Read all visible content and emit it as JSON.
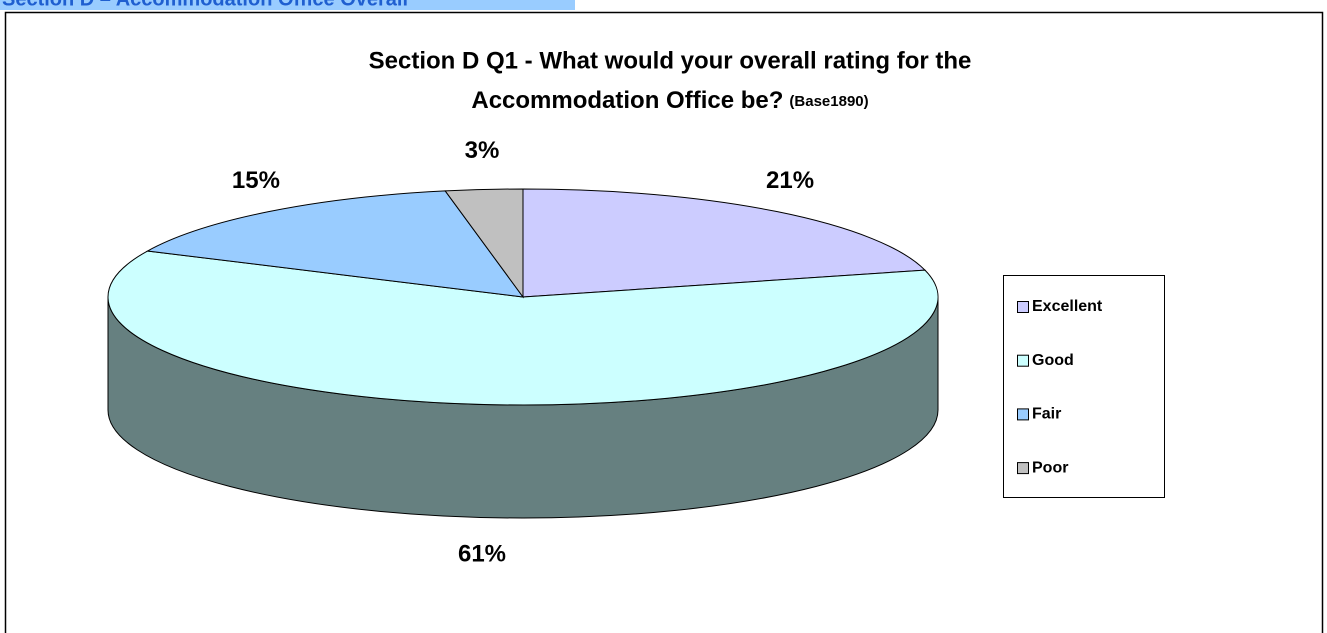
{
  "section_header": "Section D – Accommodation Office Overall",
  "chart_data": {
    "type": "pie",
    "title": [
      "Section D Q1 - What would your overall rating for the",
      "Accommodation Office be?"
    ],
    "subtitle": "(Base1890)",
    "categories": [
      "Excellent",
      "Good",
      "Fair",
      "Poor"
    ],
    "values": [
      21,
      61,
      15,
      3
    ],
    "value_labels": [
      "21%",
      "61%",
      "15%",
      "3%"
    ],
    "colors": [
      "#ccccff",
      "#ccffff",
      "#99ccff",
      "#c0c0c0"
    ],
    "legend": "right"
  }
}
